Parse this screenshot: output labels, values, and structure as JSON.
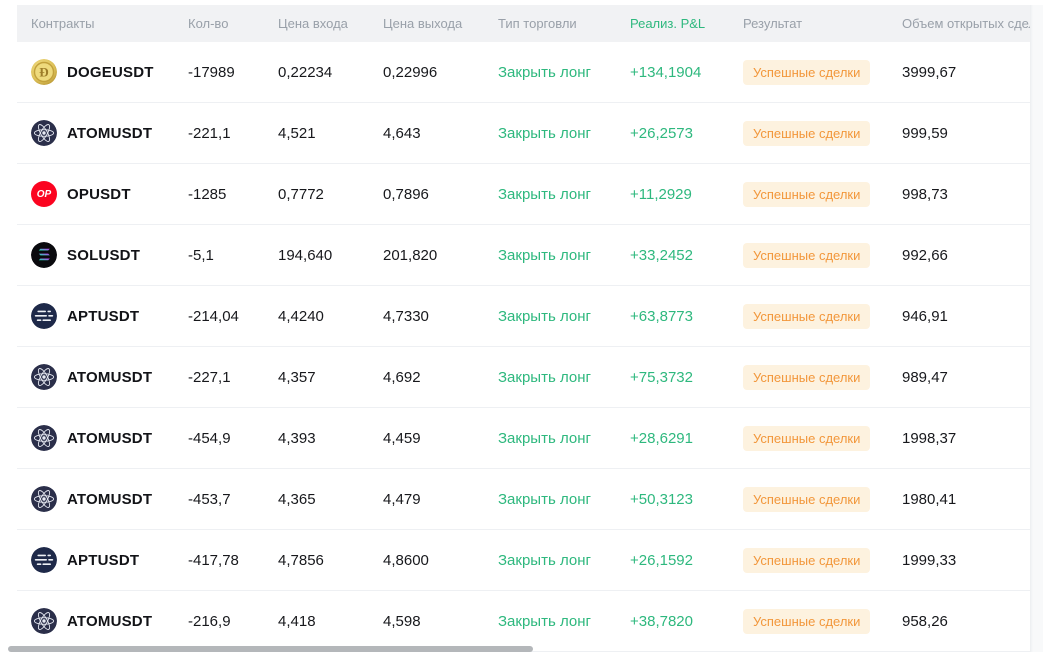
{
  "table": {
    "columns": [
      {
        "id": "contracts",
        "label": "Контракты"
      },
      {
        "id": "qty",
        "label": "Кол-во"
      },
      {
        "id": "entry",
        "label": "Цена входа"
      },
      {
        "id": "exit",
        "label": "Цена выхода"
      },
      {
        "id": "type",
        "label": "Тип торговли"
      },
      {
        "id": "pnl",
        "label": "Реализ. P&L"
      },
      {
        "id": "result",
        "label": "Результат"
      },
      {
        "id": "volume",
        "label": "Объем открытых сделок"
      }
    ],
    "rows": [
      {
        "symbol": "DOGEUSDT",
        "icon": "doge-coin-icon",
        "qty": "-17989",
        "entry": "0,22234",
        "exit": "0,22996",
        "type": "Закрыть лонг",
        "pnl": "+134,1904",
        "result": "Успешные сделки",
        "volume": "3999,67"
      },
      {
        "symbol": "ATOMUSDT",
        "icon": "atom-coin-icon",
        "qty": "-221,1",
        "entry": "4,521",
        "exit": "4,643",
        "type": "Закрыть лонг",
        "pnl": "+26,2573",
        "result": "Успешные сделки",
        "volume": "999,59"
      },
      {
        "symbol": "OPUSDT",
        "icon": "op-coin-icon",
        "qty": "-1285",
        "entry": "0,7772",
        "exit": "0,7896",
        "type": "Закрыть лонг",
        "pnl": "+11,2929",
        "result": "Успешные сделки",
        "volume": "998,73"
      },
      {
        "symbol": "SOLUSDT",
        "icon": "sol-coin-icon",
        "qty": "-5,1",
        "entry": "194,640",
        "exit": "201,820",
        "type": "Закрыть лонг",
        "pnl": "+33,2452",
        "result": "Успешные сделки",
        "volume": "992,66"
      },
      {
        "symbol": "APTUSDT",
        "icon": "apt-coin-icon",
        "qty": "-214,04",
        "entry": "4,4240",
        "exit": "4,7330",
        "type": "Закрыть лонг",
        "pnl": "+63,8773",
        "result": "Успешные сделки",
        "volume": "946,91"
      },
      {
        "symbol": "ATOMUSDT",
        "icon": "atom-coin-icon",
        "qty": "-227,1",
        "entry": "4,357",
        "exit": "4,692",
        "type": "Закрыть лонг",
        "pnl": "+75,3732",
        "result": "Успешные сделки",
        "volume": "989,47"
      },
      {
        "symbol": "ATOMUSDT",
        "icon": "atom-coin-icon",
        "qty": "-454,9",
        "entry": "4,393",
        "exit": "4,459",
        "type": "Закрыть лонг",
        "pnl": "+28,6291",
        "result": "Успешные сделки",
        "volume": "1998,37"
      },
      {
        "symbol": "ATOMUSDT",
        "icon": "atom-coin-icon",
        "qty": "-453,7",
        "entry": "4,365",
        "exit": "4,479",
        "type": "Закрыть лонг",
        "pnl": "+50,3123",
        "result": "Успешные сделки",
        "volume": "1980,41"
      },
      {
        "symbol": "APTUSDT",
        "icon": "apt-coin-icon",
        "qty": "-417,78",
        "entry": "4,7856",
        "exit": "4,8600",
        "type": "Закрыть лонг",
        "pnl": "+26,1592",
        "result": "Успешные сделки",
        "volume": "1999,33"
      },
      {
        "symbol": "ATOMUSDT",
        "icon": "atom-coin-icon",
        "qty": "-216,9",
        "entry": "4,418",
        "exit": "4,598",
        "type": "Закрыть лонг",
        "pnl": "+38,7820",
        "result": "Успешные сделки",
        "volume": "958,26"
      }
    ]
  },
  "colors": {
    "positive_green": "#2eb87e",
    "badge_text": "#f2973b",
    "badge_background": "#fdf2df",
    "header_background": "#f1f2f4",
    "header_text": "#99a0a9",
    "body_text": "#17181c",
    "row_separator": "#eef0f3",
    "scrollbar_thumb": "#b4b7ba",
    "op_brand_red": "#fb0420",
    "atom_brand_navy": "#2b2f4a",
    "doge_brand_gold": "#d9bb52"
  }
}
